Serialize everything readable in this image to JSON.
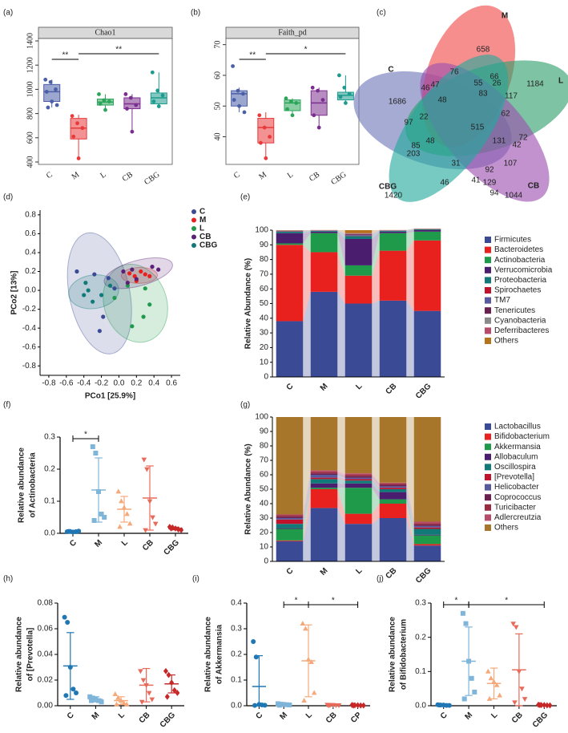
{
  "chart_data": [
    {
      "type": "box",
      "label": "(a)",
      "title": "Chao1",
      "categories": [
        "C",
        "M",
        "L",
        "CB",
        "CBG"
      ],
      "colors": [
        "#4b5fa8",
        "#e8393b",
        "#2ca55a",
        "#7a2e8e",
        "#1c9b8e"
      ],
      "boxes": [
        {
          "whislo": 850,
          "q1": 900,
          "med": 980,
          "q3": 1040,
          "whishi": 1080,
          "points": [
            1080,
            1060,
            1000,
            980,
            900,
            870,
            850
          ]
        },
        {
          "whislo": 420,
          "q1": 590,
          "med": 680,
          "q3": 760,
          "whishi": 790,
          "points": [
            780,
            720,
            680,
            610,
            430
          ]
        },
        {
          "whislo": 820,
          "q1": 870,
          "med": 895,
          "q3": 920,
          "whishi": 960,
          "points": [
            960,
            910,
            900,
            880,
            830
          ]
        },
        {
          "whislo": 640,
          "q1": 840,
          "med": 880,
          "q3": 930,
          "whishi": 960,
          "points": [
            960,
            930,
            870,
            840,
            650
          ]
        },
        {
          "whislo": 850,
          "q1": 880,
          "med": 930,
          "q3": 970,
          "whishi": 1140,
          "points": [
            1140,
            990,
            950,
            900,
            860
          ]
        }
      ],
      "ylim": [
        380,
        1420
      ],
      "yticks": [
        400,
        600,
        800,
        1000,
        1200,
        1400
      ],
      "brackets": [
        {
          "between": [
            0,
            1
          ],
          "label": "**"
        },
        {
          "between": [
            1,
            4
          ],
          "label": "**"
        }
      ]
    },
    {
      "type": "box",
      "label": "(b)",
      "title": "Faith_pd",
      "categories": [
        "C",
        "M",
        "L",
        "CB",
        "CBG"
      ],
      "colors": [
        "#4b5fa8",
        "#e8393b",
        "#2ca55a",
        "#7a2e8e",
        "#1c9b8e"
      ],
      "boxes": [
        {
          "whislo": 48,
          "q1": 50,
          "med": 54,
          "q3": 55,
          "whishi": 56,
          "points": [
            63,
            55,
            54,
            52,
            50,
            48
          ]
        },
        {
          "whislo": 33,
          "q1": 38,
          "med": 43,
          "q3": 46,
          "whishi": 48,
          "points": [
            47,
            43,
            40,
            38,
            33
          ]
        },
        {
          "whislo": 47,
          "q1": 48.5,
          "med": 51,
          "q3": 52,
          "whishi": 52.5,
          "points": [
            52.5,
            51.5,
            51,
            49,
            47
          ]
        },
        {
          "whislo": 43,
          "q1": 47,
          "med": 51,
          "q3": 55,
          "whishi": 56,
          "points": [
            56,
            55,
            52,
            47,
            43
          ]
        },
        {
          "whislo": 51,
          "q1": 52,
          "med": 53.5,
          "q3": 54.5,
          "whishi": 60,
          "points": [
            60,
            56,
            54,
            53,
            51
          ]
        }
      ],
      "ylim": [
        31,
        72
      ],
      "yticks": [
        40,
        50,
        60,
        70
      ],
      "brackets": [
        {
          "between": [
            0,
            1
          ],
          "label": "**"
        },
        {
          "between": [
            1,
            4
          ],
          "label": "*"
        }
      ]
    },
    {
      "type": "venn",
      "label": "(c)",
      "sets": [
        "C",
        "M",
        "L",
        "CB",
        "CBG"
      ],
      "colors": [
        "#6d78b8",
        "#f04848",
        "#2e9e6a",
        "#9b4fb0",
        "#22aa9c"
      ],
      "values": [
        658,
        76,
        66,
        55,
        26,
        117,
        1184,
        46,
        47,
        48,
        83,
        62,
        1686,
        97,
        22,
        515,
        72,
        42,
        85,
        48,
        131,
        203,
        107,
        31,
        92,
        129,
        46,
        41,
        94,
        1044,
        1420
      ]
    },
    {
      "type": "scatter",
      "label": "(d)",
      "xlabel": "PCo1 [25.9%]",
      "ylabel": "PCo2 [13%]",
      "xlim": [
        -0.9,
        0.7
      ],
      "xticks": [
        -0.8,
        -0.6,
        -0.4,
        -0.2,
        {
          "value": 0,
          "label": "0.0"
        },
        0.2,
        0.4,
        0.6
      ],
      "ylim": [
        -0.9,
        0.85
      ],
      "yticks": [
        -0.8,
        -0.6,
        -0.4,
        -0.2,
        {
          "value": 0,
          "label": "0.0"
        },
        0.2,
        0.4,
        0.6,
        0.8
      ],
      "series": [
        {
          "name": "C",
          "color": "#3b4a94",
          "x": [
            -0.48,
            -0.28,
            -0.12,
            -0.05,
            -0.18,
            -0.22
          ],
          "y": [
            0.2,
            0.17,
            0.13,
            0.02,
            -0.28,
            -0.43
          ]
        },
        {
          "name": "M",
          "color": "#e8211f",
          "x": [
            0.12,
            0.18,
            0.25,
            0.3,
            0.35,
            0.2
          ],
          "y": [
            0.18,
            0.15,
            0.2,
            0.17,
            0.15,
            0.1
          ]
        },
        {
          "name": "L",
          "color": "#1e9a4a",
          "x": [
            0.35,
            0.28,
            0.15,
            0.1,
            0.3,
            -0.05
          ],
          "y": [
            -0.15,
            -0.28,
            -0.38,
            0.05,
            0.02,
            -0.08
          ]
        },
        {
          "name": "CB",
          "color": "#5a2078",
          "x": [
            0.05,
            0.15,
            0.38,
            0.2,
            0.1,
            0.45
          ],
          "y": [
            0.2,
            0.22,
            0.25,
            0.12,
            0.08,
            0.22
          ]
        },
        {
          "name": "CBG",
          "color": "#117a78",
          "x": [
            -0.38,
            -0.4,
            -0.3,
            -0.2,
            -0.1,
            -0.35
          ],
          "y": [
            0.08,
            -0.05,
            -0.12,
            -0.05,
            0.05,
            0.0
          ]
        }
      ]
    },
    {
      "type": "stacked_bar",
      "label": "(e)",
      "ylabel": "Relative Abundance (%)",
      "categories": [
        "C",
        "M",
        "L",
        "CB",
        "CBG"
      ],
      "ylim": [
        0,
        100
      ],
      "yticks": [
        0,
        10,
        20,
        30,
        40,
        50,
        60,
        70,
        80,
        90,
        100
      ],
      "series": [
        {
          "name": "Firmicutes",
          "color": "#3b4a94",
          "values": [
            38,
            58,
            50,
            52,
            45
          ]
        },
        {
          "name": "Bacteroidetes",
          "color": "#e8211f",
          "values": [
            52,
            27,
            19,
            34,
            48
          ]
        },
        {
          "name": "Actinobacteria",
          "color": "#1e9a4a",
          "values": [
            1,
            13,
            7,
            12,
            6
          ]
        },
        {
          "name": "Verrucomicrobia",
          "color": "#4a1d6e",
          "values": [
            7,
            1,
            18,
            1,
            1
          ]
        },
        {
          "name": "Proteobacteria",
          "color": "#117a78",
          "values": [
            1,
            0.5,
            2,
            0.5,
            0.5
          ]
        },
        {
          "name": "Spirochaetes",
          "color": "#c0122a",
          "values": [
            0.2,
            0.1,
            0.3,
            0.1,
            0.1
          ]
        },
        {
          "name": "TM7",
          "color": "#575a9e",
          "values": [
            0.2,
            0.1,
            0.5,
            0.1,
            0.1
          ]
        },
        {
          "name": "Tenericutes",
          "color": "#6b1f4e",
          "values": [
            0.2,
            0.1,
            0.5,
            0.1,
            0.1
          ]
        },
        {
          "name": "Cyanobacteria",
          "color": "#8a8a8a",
          "values": [
            0.1,
            0.1,
            0.3,
            0.1,
            0.1
          ]
        },
        {
          "name": "Deferribacteres",
          "color": "#b84b6a",
          "values": [
            0.1,
            0.1,
            0.4,
            0.1,
            0.1
          ]
        },
        {
          "name": "Others",
          "color": "#b5731c",
          "values": [
            0.2,
            0.1,
            2,
            0.1,
            0.1
          ]
        }
      ]
    },
    {
      "type": "dot",
      "label": "(f)",
      "ylabel": [
        "Relative abundance",
        "of Actinobacteria"
      ],
      "categories": [
        "C",
        "M",
        "L",
        "CB",
        "CBG"
      ],
      "colors": [
        "#1f77b4",
        "#7fb5d9",
        "#f5a97a",
        "#e86a5a",
        "#c62828"
      ],
      "markers": [
        "circle",
        "square",
        "triangle",
        "triangle-down",
        "diamond"
      ],
      "ylim": [
        0,
        0.3
      ],
      "yticks": [
        {
          "value": 0,
          "label": "0.0"
        },
        0.1,
        0.2,
        0.3
      ],
      "groups": [
        {
          "points": [
            0.005,
            0.006,
            0.004,
            0.005,
            0.007,
            0.006
          ],
          "mean": 0.005,
          "sd": 0.002
        },
        {
          "points": [
            0.27,
            0.25,
            0.13,
            0.06,
            0.05,
            0.04
          ],
          "mean": 0.135,
          "sd": 0.1
        },
        {
          "points": [
            0.13,
            0.1,
            0.08,
            0.06,
            0.03,
            0.02
          ],
          "mean": 0.075,
          "sd": 0.04
        },
        {
          "points": [
            0.23,
            0.2,
            0.1,
            0.05,
            0.03,
            0.01
          ],
          "mean": 0.11,
          "sd": 0.1
        },
        {
          "points": [
            0.02,
            0.018,
            0.015,
            0.012,
            0.01,
            0.015
          ],
          "mean": 0.015,
          "sd": 0.004
        }
      ],
      "brackets": [
        {
          "between": [
            0,
            1
          ],
          "label": "*"
        }
      ]
    },
    {
      "type": "stacked_bar",
      "label": "(g)",
      "ylabel": "Relative Abundance (%)",
      "categories": [
        "C",
        "M",
        "L",
        "CB",
        "CBG"
      ],
      "ylim": [
        0,
        100
      ],
      "yticks": [
        0,
        10,
        20,
        30,
        40,
        50,
        60,
        70,
        80,
        90,
        100
      ],
      "series": [
        {
          "name": "Lactobacillus",
          "color": "#3b4a94",
          "values": [
            14,
            37,
            26,
            30,
            11
          ]
        },
        {
          "name": "Bifidobacterium",
          "color": "#e8211f",
          "values": [
            0.5,
            13,
            7,
            10,
            1
          ]
        },
        {
          "name": "Akkermansia",
          "color": "#1e9a4a",
          "values": [
            8,
            1,
            18,
            3,
            6
          ]
        },
        {
          "name": "Allobaculum",
          "color": "#4a1d6e",
          "values": [
            0.5,
            3,
            3,
            5,
            0.5
          ]
        },
        {
          "name": "Oscillospira",
          "color": "#117a78",
          "values": [
            3,
            3,
            2,
            2,
            4
          ]
        },
        {
          "name": "[Prevotella]",
          "color": "#c0122a",
          "values": [
            3,
            1,
            1,
            1,
            1
          ]
        },
        {
          "name": "Helicobacter",
          "color": "#575a9e",
          "values": [
            1,
            2,
            1,
            1,
            1
          ]
        },
        {
          "name": "Coprococcus",
          "color": "#6b1f4e",
          "values": [
            1,
            1,
            1,
            1,
            1
          ]
        },
        {
          "name": "Turicibacter",
          "color": "#9a2a40",
          "values": [
            1,
            1,
            1,
            1,
            1
          ]
        },
        {
          "name": "Adlercreutzia",
          "color": "#b84b6a",
          "values": [
            0.5,
            1,
            1,
            0.5,
            1
          ]
        },
        {
          "name": "Others",
          "color": "#a8762a",
          "values": [
            67.5,
            37,
            39,
            45.5,
            72.5
          ]
        }
      ]
    },
    {
      "type": "dot",
      "label": "(h)",
      "ylabel": [
        "Relative abundance",
        "of [Prevotella]"
      ],
      "categories": [
        "C",
        "M",
        "L",
        "CB",
        "CBG"
      ],
      "colors": [
        "#1f77b4",
        "#7fb5d9",
        "#f5a97a",
        "#e86a5a",
        "#c62828"
      ],
      "markers": [
        "circle",
        "square",
        "triangle",
        "triangle-down",
        "diamond"
      ],
      "ylim": [
        0,
        0.08
      ],
      "yticks": [
        {
          "value": 0,
          "label": "0.00"
        },
        0.02,
        0.04,
        0.06,
        0.08
      ],
      "groups": [
        {
          "points": [
            0.069,
            0.065,
            0.03,
            0.013,
            0.01,
            0.008
          ],
          "mean": 0.031,
          "sd": 0.026
        },
        {
          "points": [
            0.007,
            0.006,
            0.005,
            0.004,
            0.003,
            0.004
          ],
          "mean": 0.005,
          "sd": 0.002
        },
        {
          "points": [
            0.009,
            0.006,
            0.004,
            0.002,
            0.001,
            0.001
          ],
          "mean": 0.004,
          "sd": 0.003
        },
        {
          "points": [
            0.027,
            0.02,
            0.016,
            0.01,
            0.005,
            0.003
          ],
          "mean": 0.016,
          "sd": 0.013
        },
        {
          "points": [
            0.027,
            0.024,
            0.018,
            0.012,
            0.01,
            0.007
          ],
          "mean": 0.017,
          "sd": 0.007
        }
      ],
      "brackets": []
    },
    {
      "type": "dot",
      "label": "(i)",
      "ylabel": [
        "Relative abundance",
        "of Akkermansia"
      ],
      "categories": [
        "C",
        "M",
        "L",
        "CB",
        "CP"
      ],
      "colors": [
        "#1f77b4",
        "#7fb5d9",
        "#f5a97a",
        "#e86a5a",
        "#c62828"
      ],
      "markers": [
        "circle",
        "square",
        "triangle",
        "triangle-down",
        "diamond"
      ],
      "ylim": [
        0,
        0.4
      ],
      "yticks": [
        {
          "value": 0,
          "label": "0.0"
        },
        0.1,
        0.2,
        0.3,
        0.4
      ],
      "groups": [
        {
          "points": [
            0.25,
            0.19,
            0.005,
            0.003,
            0.002,
            0.001
          ],
          "mean": 0.075,
          "sd": 0.12
        },
        {
          "points": [
            0.008,
            0.006,
            0.005,
            0.004,
            0.003,
            0.002
          ],
          "mean": 0.005,
          "sd": 0.002
        },
        {
          "points": [
            0.32,
            0.3,
            0.18,
            0.17,
            0.05,
            0.02
          ],
          "mean": 0.175,
          "sd": 0.14
        },
        {
          "points": [
            0.004,
            0.003,
            0.003,
            0.002,
            0.002,
            0.001
          ],
          "mean": 0.003,
          "sd": 0.001
        },
        {
          "points": [
            0.003,
            0.002,
            0.002,
            0.001,
            0.001,
            0.001
          ],
          "mean": 0.002,
          "sd": 0.001
        }
      ],
      "brackets": [
        {
          "between": [
            1,
            2
          ],
          "label": "*"
        },
        {
          "between": [
            2,
            4
          ],
          "label": "*"
        }
      ]
    },
    {
      "type": "dot",
      "label": "(j)",
      "ylabel": [
        "Relative abundance",
        "of Bifidobacterium"
      ],
      "categories": [
        "C",
        "M",
        "L",
        "CB",
        "CBG"
      ],
      "colors": [
        "#1f77b4",
        "#7fb5d9",
        "#f5a97a",
        "#e86a5a",
        "#c62828"
      ],
      "markers": [
        "circle",
        "square",
        "triangle",
        "triangle-down",
        "diamond"
      ],
      "ylim": [
        0,
        0.3
      ],
      "yticks": [
        {
          "value": 0,
          "label": "0.0"
        },
        0.1,
        0.2,
        0.3
      ],
      "groups": [
        {
          "points": [
            0.003,
            0.002,
            0.002,
            0.001,
            0.001,
            0.002
          ],
          "mean": 0.002,
          "sd": 0.001
        },
        {
          "points": [
            0.27,
            0.24,
            0.13,
            0.08,
            0.04,
            0.02
          ],
          "mean": 0.13,
          "sd": 0.1
        },
        {
          "points": [
            0.1,
            0.08,
            0.07,
            0.06,
            0.03,
            0.02
          ],
          "mean": 0.065,
          "sd": 0.045
        },
        {
          "points": [
            0.24,
            0.23,
            0.1,
            0.05,
            0.02,
            0.01
          ],
          "mean": 0.105,
          "sd": 0.105
        },
        {
          "points": [
            0.003,
            0.002,
            0.002,
            0.001,
            0.001,
            0.002
          ],
          "mean": 0.002,
          "sd": 0.001
        }
      ],
      "brackets": [
        {
          "between": [
            0,
            1
          ],
          "label": "*"
        },
        {
          "between": [
            1,
            4
          ],
          "label": "*"
        }
      ]
    }
  ]
}
